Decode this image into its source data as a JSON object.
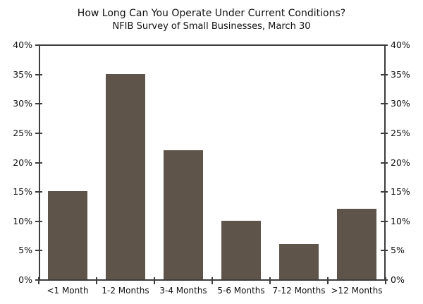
{
  "chart_data": {
    "type": "bar",
    "title": "How Long Can You Operate Under Current Conditions?",
    "subtitle": "NFIB Survey of Small Businesses, March 30",
    "categories": [
      "<1 Month",
      "1-2 Months",
      "3-4 Months",
      "5-6 Months",
      "7-12 Months",
      ">12 Months"
    ],
    "values": [
      15,
      35,
      22,
      10,
      6,
      12
    ],
    "unit": "%",
    "xlabel": "",
    "ylabel": "",
    "ylim": [
      0,
      40
    ],
    "ytick_step": 5,
    "ytick_labels": [
      "0%",
      "5%",
      "10%",
      "15%",
      "20%",
      "25%",
      "30%",
      "35%",
      "40%"
    ],
    "grid": false,
    "legend": "none",
    "axes": "left-and-right-mirrored",
    "colors": {
      "bar": "#5e5449",
      "axis": "#3d3d3d",
      "text": "#111111",
      "background": "#ffffff"
    }
  }
}
